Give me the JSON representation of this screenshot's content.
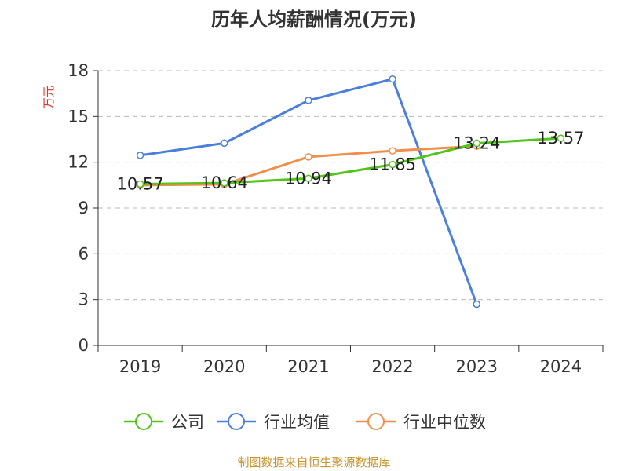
{
  "chart_data": {
    "type": "line",
    "title": "历年人均薪酬情况(万元)",
    "ylabel": "万元",
    "categories": [
      "2019",
      "2020",
      "2021",
      "2022",
      "2023",
      "2024"
    ],
    "ylim": [
      0,
      18
    ],
    "yticks": [
      0,
      3,
      6,
      9,
      12,
      15,
      18
    ],
    "grid": true,
    "legend_position": "bottom",
    "series": [
      {
        "name": "公司",
        "color": "#52c41a",
        "values": [
          10.57,
          10.64,
          10.94,
          11.85,
          13.24,
          13.57
        ],
        "labels": [
          "10.57",
          "10.64",
          "10.94",
          "11.85",
          "13.24",
          "13.57"
        ]
      },
      {
        "name": "行业均值",
        "color": "#4a7fdc",
        "values": [
          12.45,
          13.25,
          16.05,
          17.45,
          2.7,
          null
        ]
      },
      {
        "name": "行业中位数",
        "color": "#f28e4c",
        "values": [
          10.5,
          10.55,
          12.35,
          12.75,
          13.05,
          null
        ]
      }
    ]
  },
  "source": "制图数据来自恒生聚源数据库",
  "colors": {
    "ylabel": "#e0322b",
    "source": "#c8962d",
    "axis": "#333333",
    "grid": "#bbbbbb"
  }
}
